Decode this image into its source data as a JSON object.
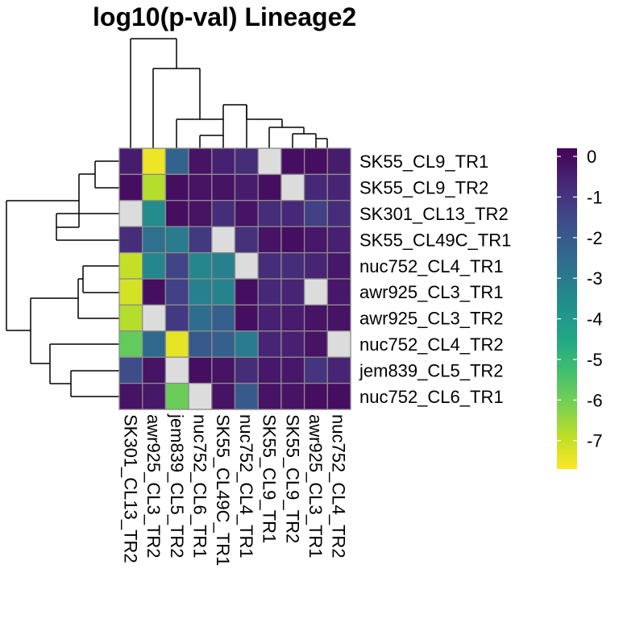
{
  "chart_data": {
    "type": "heatmap",
    "title": "log10(p-val) Lineage2",
    "rows": [
      "SK55_CL9_TR1",
      "SK55_CL9_TR2",
      "SK301_CL13_TR2",
      "SK55_CL49C_TR1",
      "nuc752_CL4_TR1",
      "awr925_CL3_TR1",
      "awr925_CL3_TR2",
      "nuc752_CL4_TR2",
      "jem839_CL5_TR2",
      "nuc752_CL6_TR1"
    ],
    "columns": [
      "SK301_CL13_TR2",
      "awr925_CL3_TR2",
      "jem839_CL5_TR2",
      "nuc752_CL6_TR1",
      "SK55_CL49C_TR1",
      "nuc752_CL4_TR1",
      "SK55_CL9_TR1",
      "SK55_CL9_TR2",
      "awr925_CL3_TR1",
      "nuc752_CL4_TR2"
    ],
    "values": [
      [
        -0.4,
        -7.5,
        -2.3,
        -0.2,
        -0.5,
        -0.8,
        null,
        -0.1,
        -0.1,
        -0.4
      ],
      [
        -0.1,
        -6.8,
        -0.1,
        -0.2,
        -0.2,
        -0.4,
        -0.1,
        null,
        -0.7,
        -0.6
      ],
      [
        null,
        -3.6,
        -0.1,
        -0.2,
        -0.8,
        -0.2,
        -0.8,
        -0.7,
        -1.3,
        -0.8
      ],
      [
        -0.8,
        -2.7,
        -3.1,
        -1.1,
        null,
        -0.9,
        -0.2,
        -0.1,
        -0.3,
        -0.5
      ],
      [
        -7.0,
        -3.4,
        -1.4,
        -3.4,
        -3.2,
        null,
        -0.8,
        -0.8,
        -0.6,
        -0.3
      ],
      [
        -7.2,
        -0.1,
        -1.3,
        -3.2,
        -3.3,
        -0.1,
        -0.7,
        -0.6,
        null,
        -0.3
      ],
      [
        -6.8,
        null,
        -1.1,
        -2.6,
        -2.2,
        -0.1,
        -0.5,
        -0.4,
        -0.2,
        -0.2
      ],
      [
        -5.8,
        -2.5,
        -7.4,
        -2.0,
        -2.2,
        -3.1,
        -0.6,
        -0.5,
        -0.2,
        null
      ],
      [
        -1.6,
        -0.2,
        null,
        -0.1,
        -0.2,
        -0.8,
        -0.3,
        -0.3,
        -1.0,
        -0.6
      ],
      [
        -0.2,
        -0.3,
        -5.9,
        null,
        -0.2,
        -2.0,
        -0.2,
        -0.2,
        -0.1,
        -0.1
      ]
    ],
    "na_color": "#dcdcdc",
    "legend": {
      "position": "right",
      "range": [
        -7.7,
        0.2
      ],
      "ticks": [
        0,
        -1,
        -2,
        -3,
        -4,
        -5,
        -6,
        -7
      ],
      "tick_labels": [
        "0",
        "-1",
        "-2",
        "-3",
        "-4",
        "-5",
        "-6",
        "-7"
      ],
      "colormap": "viridis"
    },
    "row_dendrogram": true,
    "column_dendrogram": true
  }
}
